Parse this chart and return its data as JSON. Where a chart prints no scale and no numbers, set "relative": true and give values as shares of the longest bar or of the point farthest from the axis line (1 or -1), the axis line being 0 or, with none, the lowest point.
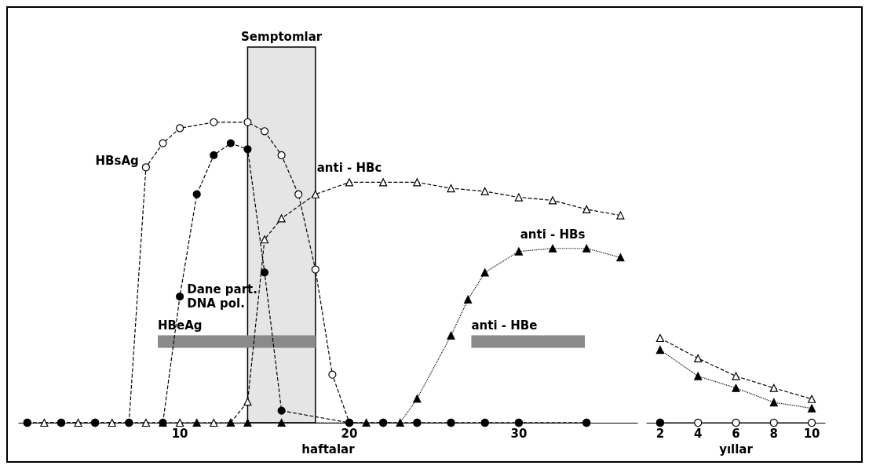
{
  "chart_data": [
    {
      "type": "line",
      "relative": true,
      "xlabel": "haftalar",
      "xlim": [
        0.5,
        37
      ],
      "xticks": [
        10,
        20,
        30
      ],
      "grid": false,
      "legend": false,
      "bands": [
        {
          "axis": "x",
          "from": 14,
          "to": 18,
          "label": "Semptomlar"
        }
      ],
      "series": [
        {
          "name": "HBsAg",
          "color": "#ffffff",
          "marker": "circle",
          "line_style": "dashed",
          "x": [
            1,
            3,
            5,
            7,
            8,
            9,
            10,
            12,
            14,
            15,
            16,
            17,
            18,
            19,
            20,
            22,
            24,
            26,
            28,
            30,
            34
          ],
          "values": [
            0,
            0,
            0,
            0,
            0.85,
            0.93,
            0.98,
            1,
            1,
            0.97,
            0.89,
            0.76,
            0.51,
            0.16,
            0,
            0,
            0,
            0,
            0,
            0,
            0
          ]
        },
        {
          "name": "Dane part.\nDNA pol.",
          "color": "#000000",
          "marker": "circle",
          "line_style": "dashed",
          "x": [
            1,
            3,
            5,
            7,
            9,
            10,
            11,
            12,
            13,
            14,
            15,
            16,
            20,
            22,
            24,
            26,
            28,
            30,
            34
          ],
          "values": [
            0,
            0,
            0,
            0,
            0,
            0.42,
            0.76,
            0.89,
            0.93,
            0.91,
            0.5,
            0.04,
            0,
            0,
            0,
            0,
            0,
            0,
            0
          ]
        },
        {
          "name": "anti - HBc",
          "color": "#ffffff",
          "marker": "triangle",
          "line_style": "dashed",
          "x": [
            2,
            4,
            6,
            8,
            10,
            12,
            13,
            14,
            15,
            16,
            18,
            20,
            22,
            24,
            26,
            28,
            30,
            32,
            34,
            36
          ],
          "values": [
            0,
            0,
            0,
            0,
            0,
            0,
            0,
            0.07,
            0.61,
            0.68,
            0.76,
            0.8,
            0.8,
            0.8,
            0.78,
            0.77,
            0.75,
            0.74,
            0.71,
            0.69
          ]
        },
        {
          "name": "anti - HBs",
          "color": "#000000",
          "marker": "triangle",
          "line_style": "dotted",
          "x": [
            9,
            11,
            13,
            14,
            16,
            21,
            23,
            24,
            26,
            27,
            28,
            30,
            32,
            34,
            36
          ],
          "values": [
            0,
            0,
            0,
            0,
            0,
            0,
            0,
            0.08,
            0.29,
            0.41,
            0.5,
            0.57,
            0.58,
            0.58,
            0.55
          ]
        },
        {
          "name": "HBeAg",
          "color": "#8a8a8a",
          "marker": "none",
          "line_style": "solid",
          "x": [
            8.7,
            18
          ],
          "values": [
            0.27,
            0.27
          ]
        },
        {
          "name": "anti - HBe",
          "color": "#8a8a8a",
          "marker": "none",
          "line_style": "solid",
          "x": [
            27.2,
            33.9
          ],
          "values": [
            0.27,
            0.27
          ]
        }
      ]
    },
    {
      "type": "line",
      "relative": true,
      "xlabel": "yıllar",
      "xlim": [
        1.3,
        10.7
      ],
      "xticks": [
        2,
        4,
        6,
        8,
        10
      ],
      "grid": false,
      "legend": false,
      "series": [
        {
          "color": "#ffffff",
          "marker": "circle",
          "line_style": "solid",
          "x": [
            2,
            4,
            6,
            8,
            10
          ],
          "values": [
            0,
            0,
            0,
            0,
            0
          ]
        },
        {
          "color": "#000000",
          "marker": "circle",
          "line_style": "solid",
          "x": [
            2
          ],
          "values": [
            0
          ]
        },
        {
          "color": "#ffffff",
          "marker": "triangle",
          "line_style": "dashed",
          "x": [
            2,
            4,
            6,
            8,
            10
          ],
          "values": [
            1,
            0.76,
            0.55,
            0.41,
            0.28
          ]
        },
        {
          "color": "#000000",
          "marker": "triangle",
          "line_style": "dotted",
          "x": [
            2,
            4,
            6,
            8,
            10
          ],
          "values": [
            0.86,
            0.55,
            0.41,
            0.24,
            0.17
          ]
        }
      ]
    }
  ]
}
